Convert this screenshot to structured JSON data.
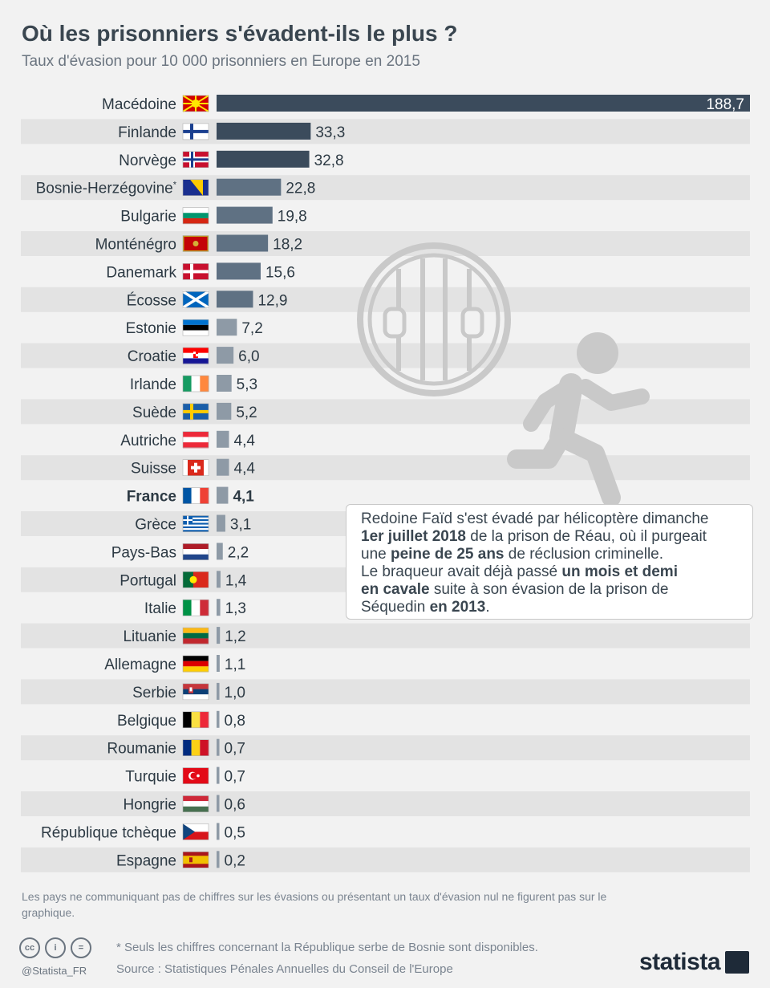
{
  "title": "Où les prisonniers s'évadent-ils le plus ?",
  "subtitle": "Taux d'évasion pour 10 000 prisonniers en Europe en 2015",
  "chart_data": {
    "type": "bar",
    "orientation": "horizontal",
    "title": "Où les prisonniers s'évadent-ils le plus ?",
    "ylabel": "",
    "xlabel": "Taux d'évasion pour 10 000 prisonniers",
    "xlim": [
      0,
      188.7
    ],
    "highlight": "France",
    "rows": [
      {
        "country": "Macédoine",
        "label": "Macédoine",
        "value": 188.7,
        "display": "188,7",
        "flag": "macedonia-flag"
      },
      {
        "country": "Finlande",
        "label": "Finlande",
        "value": 33.3,
        "display": "33,3",
        "flag": "finland-flag"
      },
      {
        "country": "Norvège",
        "label": "Norvège",
        "value": 32.8,
        "display": "32,8",
        "flag": "norway-flag"
      },
      {
        "country": "Bosnie-Herzégovine",
        "label": "Bosnie-Herzégovine*",
        "value": 22.8,
        "display": "22,8",
        "flag": "bosnia-flag"
      },
      {
        "country": "Bulgarie",
        "label": "Bulgarie",
        "value": 19.8,
        "display": "19,8",
        "flag": "bulgaria-flag"
      },
      {
        "country": "Monténégro",
        "label": "Monténégro",
        "value": 18.2,
        "display": "18,2",
        "flag": "montenegro-flag"
      },
      {
        "country": "Danemark",
        "label": "Danemark",
        "value": 15.6,
        "display": "15,6",
        "flag": "denmark-flag"
      },
      {
        "country": "Écosse",
        "label": "Écosse",
        "value": 12.9,
        "display": "12,9",
        "flag": "scotland-flag"
      },
      {
        "country": "Estonie",
        "label": "Estonie",
        "value": 7.2,
        "display": "7,2",
        "flag": "estonia-flag"
      },
      {
        "country": "Croatie",
        "label": "Croatie",
        "value": 6.0,
        "display": "6,0",
        "flag": "croatia-flag"
      },
      {
        "country": "Irlande",
        "label": "Irlande",
        "value": 5.3,
        "display": "5,3",
        "flag": "ireland-flag"
      },
      {
        "country": "Suède",
        "label": "Suède",
        "value": 5.2,
        "display": "5,2",
        "flag": "sweden-flag"
      },
      {
        "country": "Autriche",
        "label": "Autriche",
        "value": 4.4,
        "display": "4,4",
        "flag": "austria-flag"
      },
      {
        "country": "Suisse",
        "label": "Suisse",
        "value": 4.4,
        "display": "4,4",
        "flag": "switzerland-flag"
      },
      {
        "country": "France",
        "label": "France",
        "value": 4.1,
        "display": "4,1",
        "flag": "france-flag"
      },
      {
        "country": "Grèce",
        "label": "Grèce",
        "value": 3.1,
        "display": "3,1",
        "flag": "greece-flag"
      },
      {
        "country": "Pays-Bas",
        "label": "Pays-Bas",
        "value": 2.2,
        "display": "2,2",
        "flag": "netherlands-flag"
      },
      {
        "country": "Portugal",
        "label": "Portugal",
        "value": 1.4,
        "display": "1,4",
        "flag": "portugal-flag"
      },
      {
        "country": "Italie",
        "label": "Italie",
        "value": 1.3,
        "display": "1,3",
        "flag": "italy-flag"
      },
      {
        "country": "Lituanie",
        "label": "Lituanie",
        "value": 1.2,
        "display": "1,2",
        "flag": "lithuania-flag"
      },
      {
        "country": "Allemagne",
        "label": "Allemagne",
        "value": 1.1,
        "display": "1,1",
        "flag": "germany-flag"
      },
      {
        "country": "Serbie",
        "label": "Serbie",
        "value": 1.0,
        "display": "1,0",
        "flag": "serbia-flag"
      },
      {
        "country": "Belgique",
        "label": "Belgique",
        "value": 0.8,
        "display": "0,8",
        "flag": "belgium-flag"
      },
      {
        "country": "Roumanie",
        "label": "Roumanie",
        "value": 0.7,
        "display": "0,7",
        "flag": "romania-flag"
      },
      {
        "country": "Turquie",
        "label": "Turquie",
        "value": 0.7,
        "display": "0,7",
        "flag": "turkey-flag"
      },
      {
        "country": "Hongrie",
        "label": "Hongrie",
        "value": 0.6,
        "display": "0,6",
        "flag": "hungary-flag"
      },
      {
        "country": "République tchèque",
        "label": "République tchèque",
        "value": 0.5,
        "display": "0,5",
        "flag": "czech-flag"
      },
      {
        "country": "Espagne",
        "label": "Espagne",
        "value": 0.2,
        "display": "0,2",
        "flag": "spain-flag"
      }
    ]
  },
  "colors": {
    "bar_top": "#3b4b5c",
    "bar_mid": "#5f7183",
    "bar_low": "#8e9aa6",
    "stripe": "#e3e3e3",
    "illustration": "#c9c9c9"
  },
  "callout": {
    "l1a": "Redoine Faïd s'est évadé par hélicoptère dimanche",
    "l2b": "1er juillet 2018",
    "l2t": " de la prison de Réau, où il purgeait",
    "l3a": "une ",
    "l3b": "peine de 25 ans",
    "l3t": " de réclusion criminelle.",
    "l4a": "Le braqueur avait déjà passé ",
    "l4b": "un mois et demi",
    "l5b": "en cavale",
    "l5t": " suite à son évasion de la prison de",
    "l6a": "Séquedin ",
    "l6b": "en 2013",
    "l6t": "."
  },
  "note": "Les pays ne communiquant pas de chiffres sur les évasions ou présentant un taux d'évasion nul ne figurent pas sur le graphique.",
  "footnote": "* Seuls les chiffres concernant la République serbe de Bosnie sont disponibles.",
  "source": "Source : Statistiques Pénales Annuelles du Conseil de l'Europe",
  "handle": "@Statista_FR",
  "brand": "statista",
  "license_icons": [
    "cc-icon",
    "person-icon",
    "equal-icon"
  ]
}
